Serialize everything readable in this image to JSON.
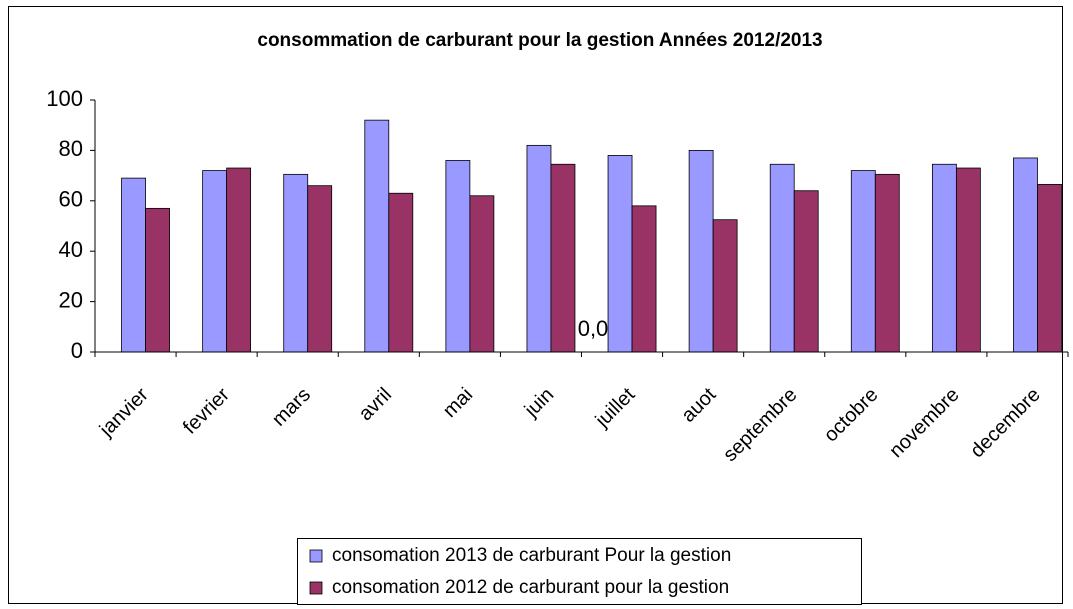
{
  "chart_data": {
    "type": "bar",
    "title": "consommation de carburant pour la gestion Années 2012/2013",
    "categories": [
      "janvier",
      "fevrier",
      "mars",
      "avril",
      "mai",
      "juin",
      "juillet",
      "auot",
      "septembre",
      "octobre",
      "novembre",
      "decembre"
    ],
    "series": [
      {
        "name": "consomation 2013 de carburant Pour la gestion",
        "color": "#9999ff",
        "values": [
          69,
          72,
          70.5,
          92,
          76,
          82,
          78,
          80,
          74.5,
          72,
          74.5,
          77
        ]
      },
      {
        "name": "consomation 2012 de carburant pour la gestion",
        "color": "#993366",
        "values": [
          57,
          73,
          66,
          63,
          62,
          74.5,
          58,
          52.5,
          64,
          70.5,
          73,
          66.5
        ]
      }
    ],
    "annotation": "0,0",
    "ylim": [
      0,
      100
    ],
    "yticks": [
      0,
      20,
      40,
      60,
      80,
      100
    ],
    "grid": false,
    "legend": "bottom"
  }
}
